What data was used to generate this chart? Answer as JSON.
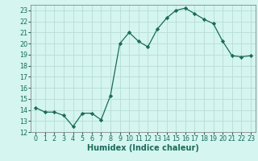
{
  "xlabel": "Humidex (Indice chaleur)",
  "ylabel": "",
  "x": [
    0,
    1,
    2,
    3,
    4,
    5,
    6,
    7,
    8,
    9,
    10,
    11,
    12,
    13,
    14,
    15,
    16,
    17,
    18,
    19,
    20,
    21,
    22,
    23
  ],
  "y": [
    14.2,
    13.8,
    13.8,
    13.5,
    12.5,
    13.7,
    13.7,
    13.1,
    15.3,
    20.0,
    21.0,
    20.2,
    19.7,
    21.3,
    22.3,
    23.0,
    23.2,
    22.7,
    22.2,
    21.8,
    20.2,
    18.9,
    18.8,
    18.9
  ],
  "line_color": "#1a6b5a",
  "marker": "D",
  "marker_size": 2.2,
  "background_color": "#d4f5f0",
  "grid_color": "#b8ddd8",
  "ylim": [
    12,
    23.5
  ],
  "xlim": [
    -0.5,
    23.5
  ],
  "yticks": [
    12,
    13,
    14,
    15,
    16,
    17,
    18,
    19,
    20,
    21,
    22,
    23
  ],
  "xticks": [
    0,
    1,
    2,
    3,
    4,
    5,
    6,
    7,
    8,
    9,
    10,
    11,
    12,
    13,
    14,
    15,
    16,
    17,
    18,
    19,
    20,
    21,
    22,
    23
  ],
  "label_fontsize": 7,
  "tick_fontsize": 5.8,
  "tick_color": "#1a6b5a",
  "spine_color": "#888888"
}
